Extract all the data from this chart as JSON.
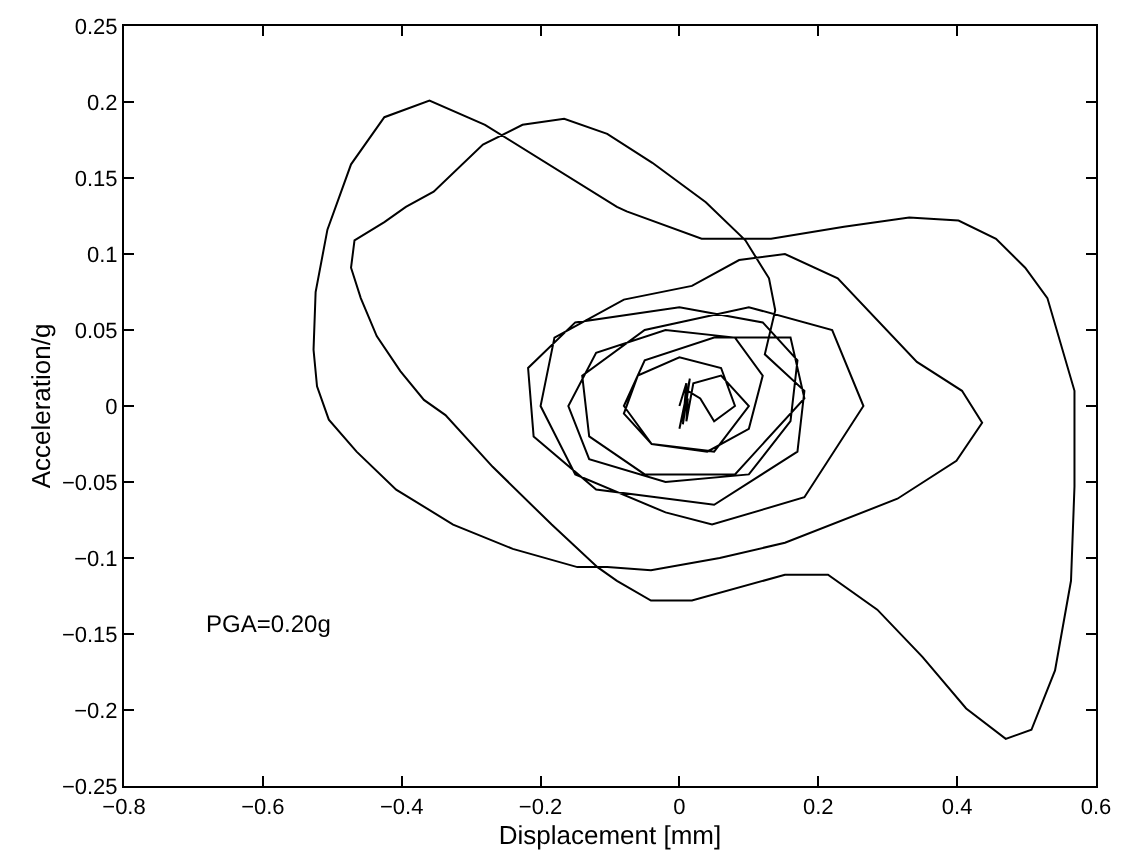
{
  "chart_data": {
    "type": "line",
    "xlabel": "Displacement [mm]",
    "ylabel": "Acceleration/g",
    "annotations": [
      "PGA=0.20g"
    ],
    "xlim": [
      -0.8,
      0.6
    ],
    "xticks": [
      {
        "value": -0.8,
        "label": "−0.8"
      },
      {
        "value": -0.6,
        "label": "−0.6"
      },
      {
        "value": -0.4,
        "label": "−0.4"
      },
      {
        "value": -0.2,
        "label": "−0.2"
      },
      0,
      0.2,
      0.4,
      0.6
    ],
    "ylim": [
      -0.25,
      0.25
    ],
    "yticks": [
      {
        "value": -0.25,
        "label": "−0.25"
      },
      {
        "value": -0.2,
        "label": "−0.2"
      },
      {
        "value": -0.15,
        "label": "−0.15"
      },
      {
        "value": -0.1,
        "label": "−0.1"
      },
      {
        "value": -0.05,
        "label": "−0.05"
      },
      0,
      0.05,
      0.1,
      0.15,
      0.2,
      0.25
    ],
    "marker": "none",
    "line_style": "solid",
    "series": [
      {
        "color": "#000000",
        "x": [
          0.0,
          0.01,
          0.005,
          0.015,
          0.0,
          0.012,
          0.03,
          0.05,
          0.08,
          0.06,
          0.0,
          -0.06,
          -0.08,
          -0.04,
          0.04,
          0.1,
          0.12,
          0.08,
          -0.02,
          -0.12,
          -0.16,
          -0.13,
          -0.02,
          0.1,
          0.16,
          0.17,
          0.12,
          0.0,
          -0.15,
          -0.218,
          -0.21,
          -0.12,
          0.05,
          0.17,
          0.18,
          0.123,
          0.138,
          0.129,
          0.095,
          0.038,
          -0.039,
          -0.104,
          -0.166,
          -0.226,
          -0.283,
          -0.354,
          -0.394,
          -0.425,
          -0.468,
          -0.473,
          -0.459,
          -0.436,
          -0.402,
          -0.368,
          -0.337,
          -0.269,
          -0.184,
          -0.118,
          -0.09,
          -0.041,
          0.018,
          0.152,
          0.214,
          0.285,
          0.35,
          0.413,
          0.47,
          0.507,
          0.541,
          0.564,
          0.569,
          0.569,
          0.53,
          0.498,
          0.456,
          0.402,
          0.331,
          0.237,
          0.132,
          0.032,
          -0.076,
          -0.09,
          -0.28,
          -0.36,
          -0.425,
          -0.473,
          -0.507,
          -0.524,
          -0.527,
          -0.522,
          -0.505,
          -0.465,
          -0.408,
          -0.326,
          -0.24,
          -0.147,
          -0.104,
          -0.041,
          0.058,
          0.152,
          0.314,
          0.399,
          0.436,
          0.407,
          0.342,
          0.228,
          0.152,
          0.086,
          0.018,
          -0.08,
          -0.18,
          -0.2,
          -0.15,
          -0.02,
          0.047,
          0.18,
          0.265,
          0.22,
          0.1,
          -0.05,
          -0.14,
          -0.13,
          -0.05,
          0.08,
          0.18,
          0.16,
          0.05,
          -0.05,
          -0.08,
          -0.04,
          0.05,
          0.1,
          0.06,
          0.02,
          0.01,
          0.012
        ],
        "values": [
          0.0,
          0.015,
          -0.012,
          0.018,
          -0.015,
          0.01,
          0.005,
          -0.01,
          0.0,
          0.025,
          0.032,
          0.02,
          -0.005,
          -0.025,
          -0.03,
          -0.015,
          0.02,
          0.045,
          0.05,
          0.035,
          0.0,
          -0.035,
          -0.05,
          -0.045,
          -0.01,
          0.03,
          0.055,
          0.065,
          0.055,
          0.025,
          -0.02,
          -0.055,
          -0.065,
          -0.03,
          0.01,
          0.034,
          0.063,
          0.084,
          0.109,
          0.134,
          0.16,
          0.179,
          0.189,
          0.185,
          0.172,
          0.141,
          0.131,
          0.121,
          0.109,
          0.091,
          0.071,
          0.046,
          0.023,
          0.004,
          -0.006,
          -0.04,
          -0.078,
          -0.106,
          -0.115,
          -0.128,
          -0.128,
          -0.111,
          -0.111,
          -0.134,
          -0.165,
          -0.199,
          -0.219,
          -0.213,
          -0.174,
          -0.115,
          -0.053,
          0.01,
          0.071,
          0.091,
          0.11,
          0.122,
          0.124,
          0.118,
          0.11,
          0.11,
          0.128,
          0.131,
          0.185,
          0.201,
          0.19,
          0.159,
          0.116,
          0.075,
          0.037,
          0.013,
          -0.009,
          -0.03,
          -0.055,
          -0.078,
          -0.094,
          -0.106,
          -0.106,
          -0.108,
          -0.1,
          -0.09,
          -0.061,
          -0.036,
          -0.011,
          0.01,
          0.029,
          0.084,
          0.1,
          0.096,
          0.079,
          0.07,
          0.045,
          0.0,
          -0.045,
          -0.07,
          -0.078,
          -0.06,
          0.0,
          0.05,
          0.065,
          0.05,
          0.02,
          -0.02,
          -0.045,
          -0.045,
          0.005,
          0.045,
          0.045,
          0.03,
          0.0,
          -0.025,
          -0.03,
          0.0,
          0.02,
          0.015,
          -0.01,
          0.005
        ]
      }
    ]
  }
}
